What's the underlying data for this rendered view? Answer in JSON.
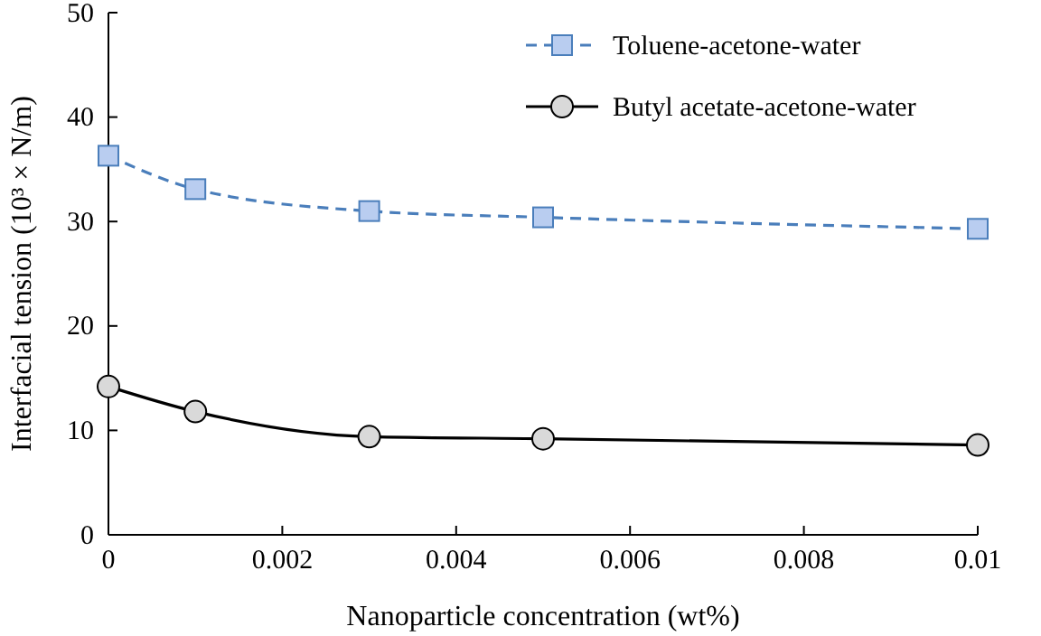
{
  "chart_data": {
    "type": "line",
    "xlabel": "Nanoparticle concentration (wt%)",
    "ylabel": "Interfacial tension (10³ × N/m)",
    "x": [
      0,
      0.001,
      0.003,
      0.005,
      0.01
    ],
    "xlim": [
      0,
      0.01
    ],
    "xticks": [
      0,
      0.002,
      0.004,
      0.006,
      0.008,
      0.01
    ],
    "ylim": [
      0,
      50
    ],
    "yticks": [
      0,
      10,
      20,
      30,
      40,
      50
    ],
    "grid": false,
    "legend": "top right",
    "series": [
      {
        "name": "Toluene-acetone-water",
        "color": "#4a7ebb",
        "values": [
          36.3,
          33.1,
          31.0,
          30.4,
          29.3
        ],
        "marker": "square",
        "line_style": "dashed"
      },
      {
        "name": "Butyl acetate-acetone-water",
        "color": "#000000",
        "values": [
          14.2,
          11.8,
          9.4,
          9.2,
          8.6
        ],
        "marker": "circle",
        "line_style": "solid"
      }
    ]
  }
}
